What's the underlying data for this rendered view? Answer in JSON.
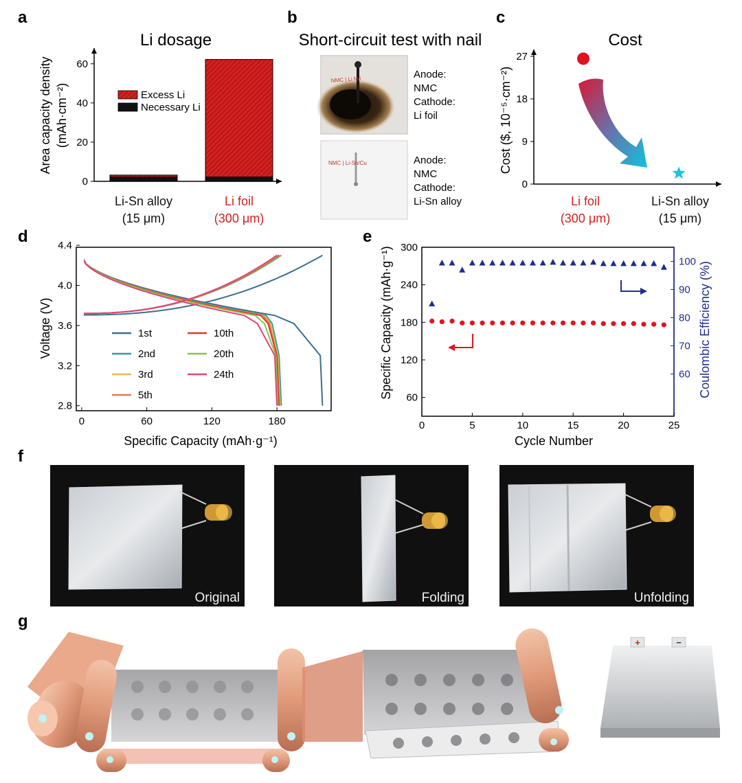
{
  "panel_labels": {
    "a": "a",
    "b": "b",
    "c": "c",
    "d": "d",
    "e": "e",
    "f": "f",
    "g": "g"
  },
  "chart_data": [
    {
      "id": "a",
      "type": "bar",
      "stacked": true,
      "title": "Li dosage",
      "ylabel_line1": "Area capacity density",
      "ylabel_line2": "(mAh·cm⁻²)",
      "ylim": [
        0,
        68
      ],
      "yticks": [
        0,
        20,
        40,
        60
      ],
      "categories": [
        "Li-Sn alloy",
        "Li foil"
      ],
      "category_sub": [
        "(15 μm)",
        "(300 μm)"
      ],
      "category_colors": [
        "#111111",
        "#d4201f"
      ],
      "series": [
        {
          "name": "Necessary Li",
          "values": [
            2.2,
            2.2
          ],
          "color": "#111111"
        },
        {
          "name": "Excess Li",
          "values": [
            1.0,
            60.0
          ],
          "color": "#d4201f"
        }
      ]
    },
    {
      "id": "c",
      "type": "scatter",
      "title": "Cost",
      "ylabel": "Cost ($, 10⁻⁵·cm⁻²)",
      "ylim": [
        0,
        28
      ],
      "yticks": [
        0,
        9,
        18,
        27
      ],
      "categories": [
        "Li foil",
        "Li-Sn alloy"
      ],
      "category_sub": [
        "(300 μm)",
        "(15 μm)"
      ],
      "category_colors": [
        "#d4201f",
        "#111111"
      ],
      "values": [
        26.5,
        2.3
      ],
      "markers": [
        "circle",
        "star"
      ],
      "colors": [
        "#e0141e",
        "#1cc3de"
      ]
    },
    {
      "id": "d",
      "type": "line",
      "xlabel": "Specific Capacity (mAh·g⁻¹)",
      "ylabel": "Voltage (V)",
      "xlim": [
        -5,
        230
      ],
      "ylim": [
        2.75,
        4.38
      ],
      "xticks": [
        0,
        60,
        120,
        180
      ],
      "yticks": [
        2.8,
        3.2,
        3.6,
        4.0,
        4.4
      ],
      "series": [
        {
          "name": "1st",
          "color": "#3b6e8f",
          "end": 222,
          "plateau": 3.705,
          "knee": 178
        },
        {
          "name": "2nd",
          "color": "#2aa198",
          "end": 184,
          "plateau": 3.72,
          "knee": 170
        },
        {
          "name": "3rd",
          "color": "#e8b84a",
          "end": 183,
          "plateau": 3.72,
          "knee": 168
        },
        {
          "name": "5th",
          "color": "#e07b53",
          "end": 182,
          "plateau": 3.72,
          "knee": 167
        },
        {
          "name": "10th",
          "color": "#d83a2f",
          "end": 182,
          "plateau": 3.72,
          "knee": 165
        },
        {
          "name": "20th",
          "color": "#8cc152",
          "end": 181,
          "plateau": 3.72,
          "knee": 160
        },
        {
          "name": "24th",
          "color": "#e0457b",
          "end": 180,
          "plateau": 3.72,
          "knee": 150
        }
      ]
    },
    {
      "id": "e",
      "type": "scatter",
      "dual_axis": true,
      "xlabel": "Cycle Number",
      "ylabel": "Specific Capacity (mAh·g⁻¹)",
      "y2label": "Coulombic Efficiency (%)",
      "xlim": [
        0,
        25
      ],
      "ylim": [
        30,
        300
      ],
      "y2lim": [
        45,
        105
      ],
      "xticks": [
        0,
        5,
        10,
        15,
        20,
        25
      ],
      "yticks": [
        60,
        120,
        180,
        240,
        300
      ],
      "y2ticks": [
        60,
        70,
        80,
        90,
        100
      ],
      "x": [
        1,
        2,
        3,
        4,
        5,
        6,
        7,
        8,
        9,
        10,
        11,
        12,
        13,
        14,
        15,
        16,
        17,
        18,
        19,
        20,
        21,
        22,
        23,
        24
      ],
      "capacity": [
        182,
        181,
        182,
        179,
        179,
        179,
        179,
        179,
        179,
        179,
        179,
        179,
        179,
        179,
        179,
        179,
        179,
        178,
        178,
        178,
        178,
        177,
        177,
        176
      ],
      "efficiency": [
        85,
        99.5,
        99.5,
        97,
        99.5,
        99.5,
        99.5,
        99.5,
        99.5,
        99.5,
        99.5,
        99.5,
        99.8,
        99.5,
        99.5,
        99.5,
        99.8,
        99.3,
        99.3,
        99.3,
        99.3,
        99.3,
        99.3,
        98
      ],
      "capacity_color": "#e0141e",
      "efficiency_color": "#1d2d8f"
    }
  ],
  "panel_b": {
    "title": "Short-circuit test with nail",
    "top_lines": [
      "Anode:",
      "NMC",
      "Cathode:",
      "Li foil"
    ],
    "bottom_lines": [
      "Anode:",
      "NMC",
      "Cathode:",
      "Li-Sn alloy"
    ],
    "photo_top_text": "NMC | Li foil",
    "photo_bottom_text": "NMC | Li-Sn/Cu"
  },
  "panel_f": {
    "captions": [
      "Original",
      "Folding",
      "Unfolding"
    ]
  },
  "panel_g": {
    "plus": "+",
    "minus": "−"
  }
}
